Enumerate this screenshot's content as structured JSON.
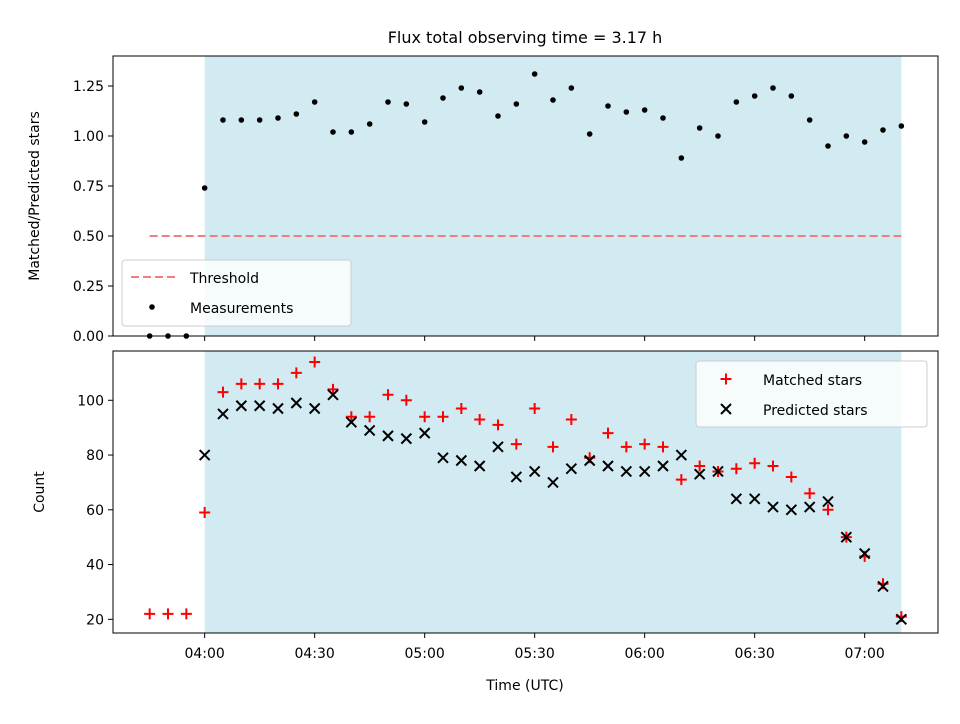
{
  "figure": {
    "title": "Flux total observing time = 3.17 h",
    "xlabel": "Time (UTC)"
  },
  "colors": {
    "shade": "#add8e6",
    "threshold": "#f08080",
    "measurement": "#000000",
    "matched": "#ff0000",
    "predicted": "#000000"
  },
  "chart_data": [
    {
      "type": "scatter",
      "panel": "top",
      "ylabel": "Matched/Predicted stars",
      "xlim": [
        "03:35",
        "07:20"
      ],
      "ylim": [
        0,
        1.4
      ],
      "x_tick_labels": [
        "04:00",
        "04:30",
        "05:00",
        "05:30",
        "06:00",
        "06:30",
        "07:00"
      ],
      "y_ticks": [
        "0.00",
        "0.25",
        "0.50",
        "0.75",
        "1.00",
        "1.25"
      ],
      "shaded_interval": [
        "04:00",
        "07:10"
      ],
      "legend": {
        "location": "lower-left",
        "entries": [
          "Threshold",
          "Measurements"
        ]
      },
      "threshold": {
        "name": "Threshold",
        "value": 0.5,
        "x_range": [
          "03:45",
          "07:10"
        ],
        "style": "dashed"
      },
      "series": [
        {
          "name": "Measurements",
          "marker": "dot",
          "x": [
            "03:45",
            "03:50",
            "03:55",
            "04:00",
            "04:05",
            "04:10",
            "04:15",
            "04:20",
            "04:25",
            "04:30",
            "04:35",
            "04:40",
            "04:45",
            "04:50",
            "04:55",
            "05:00",
            "05:05",
            "05:10",
            "05:15",
            "05:20",
            "05:25",
            "05:30",
            "05:35",
            "05:40",
            "05:45",
            "05:50",
            "05:55",
            "06:00",
            "06:05",
            "06:10",
            "06:15",
            "06:20",
            "06:25",
            "06:30",
            "06:35",
            "06:40",
            "06:45",
            "06:50",
            "06:55",
            "07:00",
            "07:05",
            "07:10"
          ],
          "y": [
            0.0,
            0.0,
            0.0,
            0.74,
            1.08,
            1.08,
            1.08,
            1.09,
            1.11,
            1.17,
            1.02,
            1.02,
            1.06,
            1.17,
            1.16,
            1.07,
            1.19,
            1.24,
            1.22,
            1.1,
            1.16,
            1.31,
            1.18,
            1.24,
            1.01,
            1.15,
            1.12,
            1.13,
            1.09,
            0.89,
            1.04,
            1.0,
            1.17,
            1.2,
            1.24,
            1.2,
            1.08,
            0.95,
            1.0,
            0.97,
            1.03,
            1.05
          ]
        }
      ]
    },
    {
      "type": "scatter",
      "panel": "bottom",
      "ylabel": "Count",
      "xlim": [
        "03:35",
        "07:20"
      ],
      "ylim": [
        15,
        118
      ],
      "x_tick_labels": [
        "04:00",
        "04:30",
        "05:00",
        "05:30",
        "06:00",
        "06:30",
        "07:00"
      ],
      "y_ticks": [
        "20",
        "40",
        "60",
        "80",
        "100"
      ],
      "shaded_interval": [
        "04:00",
        "07:10"
      ],
      "legend": {
        "location": "upper-right",
        "entries": [
          "Matched stars",
          "Predicted stars"
        ]
      },
      "series": [
        {
          "name": "Matched stars",
          "marker": "plus",
          "x": [
            "03:45",
            "03:50",
            "03:55",
            "04:00",
            "04:05",
            "04:10",
            "04:15",
            "04:20",
            "04:25",
            "04:30",
            "04:35",
            "04:40",
            "04:45",
            "04:50",
            "04:55",
            "05:00",
            "05:05",
            "05:10",
            "05:15",
            "05:20",
            "05:25",
            "05:30",
            "05:35",
            "05:40",
            "05:45",
            "05:50",
            "05:55",
            "06:00",
            "06:05",
            "06:10",
            "06:15",
            "06:20",
            "06:25",
            "06:30",
            "06:35",
            "06:40",
            "06:45",
            "06:50",
            "06:55",
            "07:00",
            "07:05",
            "07:10"
          ],
          "y": [
            22,
            22,
            22,
            59,
            103,
            106,
            106,
            106,
            110,
            114,
            104,
            94,
            94,
            102,
            100,
            94,
            94,
            97,
            93,
            91,
            84,
            97,
            83,
            93,
            79,
            88,
            83,
            84,
            83,
            71,
            76,
            74,
            75,
            77,
            76,
            72,
            66,
            60,
            50,
            43,
            33,
            21
          ]
        },
        {
          "name": "Predicted stars",
          "marker": "x",
          "x": [
            "04:00",
            "04:05",
            "04:10",
            "04:15",
            "04:20",
            "04:25",
            "04:30",
            "04:35",
            "04:40",
            "04:45",
            "04:50",
            "04:55",
            "05:00",
            "05:05",
            "05:10",
            "05:15",
            "05:20",
            "05:25",
            "05:30",
            "05:35",
            "05:40",
            "05:45",
            "05:50",
            "05:55",
            "06:00",
            "06:05",
            "06:10",
            "06:15",
            "06:20",
            "06:25",
            "06:30",
            "06:35",
            "06:40",
            "06:45",
            "06:50",
            "06:55",
            "07:00",
            "07:05",
            "07:10"
          ],
          "y": [
            80,
            95,
            98,
            98,
            97,
            99,
            97,
            102,
            92,
            89,
            87,
            86,
            88,
            79,
            78,
            76,
            83,
            72,
            74,
            70,
            75,
            78,
            76,
            74,
            74,
            76,
            80,
            73,
            74,
            64,
            64,
            61,
            60,
            61,
            63,
            50,
            44,
            32,
            20
          ]
        }
      ]
    }
  ]
}
